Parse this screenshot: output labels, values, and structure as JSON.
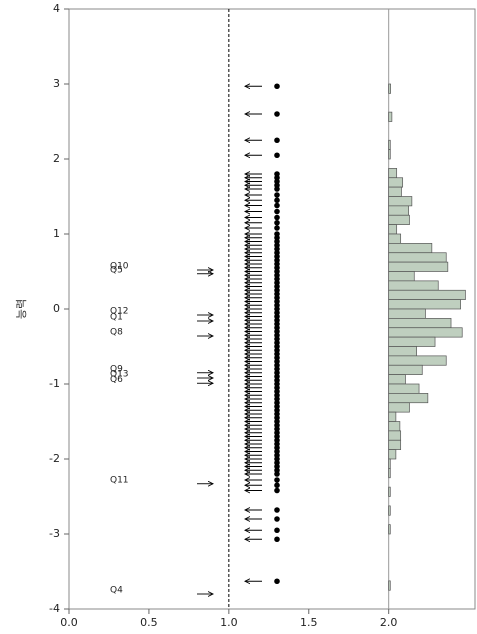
{
  "chart_data": {
    "type": "item-person-map",
    "ylabel": "능력",
    "ylim": [
      -4,
      4
    ],
    "yticks": [
      -4,
      -3,
      -2,
      -1,
      0,
      1,
      2,
      3,
      4
    ],
    "xlim": [
      0,
      2.54
    ],
    "xticks": [
      {
        "value": 0,
        "label": "0.0"
      },
      {
        "value": 0.5,
        "label": "0.5"
      },
      {
        "value": 1,
        "label": "1.0"
      },
      {
        "value": 1.5,
        "label": "1.5"
      },
      {
        "value": 2,
        "label": "2.0"
      }
    ],
    "xlines": [
      1,
      2
    ],
    "items": {
      "names": [
        "Q10",
        "Q5",
        "Q12",
        "Q1",
        "Q8",
        "Q9",
        "Q13",
        "Q6",
        "Q11",
        "Q4"
      ],
      "values": [
        0.52,
        0.47,
        -0.08,
        -0.16,
        -0.36,
        -0.85,
        -0.92,
        -0.99,
        -2.33,
        -3.8
      ]
    },
    "persons": {
      "values": [
        2.97,
        2.6,
        2.25,
        2.05,
        1.8,
        1.75,
        1.7,
        1.65,
        1.6,
        1.52,
        1.45,
        1.38,
        1.3,
        1.22,
        1.15,
        1.08,
        1.0,
        0.95,
        0.9,
        0.85,
        0.8,
        0.75,
        0.7,
        0.65,
        0.6,
        0.55,
        0.5,
        0.45,
        0.4,
        0.35,
        0.3,
        0.25,
        0.2,
        0.15,
        0.1,
        0.05,
        0,
        -0.05,
        -0.1,
        -0.15,
        -0.2,
        -0.25,
        -0.3,
        -0.35,
        -0.4,
        -0.45,
        -0.5,
        -0.55,
        -0.6,
        -0.65,
        -0.7,
        -0.75,
        -0.8,
        -0.85,
        -0.9,
        -0.95,
        -1.0,
        -1.05,
        -1.1,
        -1.15,
        -1.2,
        -1.25,
        -1.3,
        -1.35,
        -1.4,
        -1.45,
        -1.5,
        -1.55,
        -1.6,
        -1.65,
        -1.7,
        -1.75,
        -1.8,
        -1.85,
        -1.9,
        -1.95,
        -2.0,
        -2.05,
        -2.1,
        -2.15,
        -2.2,
        -2.28,
        -2.35,
        -2.42,
        -2.68,
        -2.8,
        -2.95,
        -3.07,
        -3.63
      ]
    },
    "histogram": {
      "color": "#bfcfbf",
      "bins": [
        3.0,
        2.875,
        2.75,
        2.625,
        2.5,
        2.375,
        2.25,
        2.125,
        2.0,
        1.875,
        1.75,
        1.625,
        1.5,
        1.375,
        1.25,
        1.125,
        1.0,
        0.875,
        0.75,
        0.625,
        0.5,
        0.375,
        0.25,
        0.125,
        0,
        -0.125,
        -0.25,
        -0.375,
        -0.5,
        -0.625,
        -0.75,
        -0.875,
        -1.0,
        -1.125,
        -1.25,
        -1.375,
        -1.5,
        -1.625,
        -1.75,
        -1.875,
        -2.0,
        -2.125,
        -2.25,
        -2.375,
        -2.5,
        -2.625,
        -2.75,
        -2.875,
        -3.0,
        -3.125,
        -3.25,
        -3.375,
        -3.5,
        -3.625,
        -3.75
      ],
      "values": [
        0.012,
        0,
        0,
        0.02,
        0,
        0,
        0.01,
        0.01,
        0,
        0.05,
        0.0875,
        0.08,
        0.145,
        0.125,
        0.13,
        0.05,
        0.075,
        0.27,
        0.36,
        0.37,
        0.16,
        0.31,
        0.48,
        0.45,
        0.23,
        0.39,
        0.46,
        0.29,
        0.175,
        0.36,
        0.21,
        0.105,
        0.19,
        0.245,
        0.13,
        0.045,
        0.07,
        0.075,
        0.075,
        0.045,
        0.01,
        0.01,
        0,
        0.01,
        0,
        0.01,
        0,
        0.01,
        0,
        0,
        0,
        0,
        0,
        0.01
      ]
    }
  }
}
